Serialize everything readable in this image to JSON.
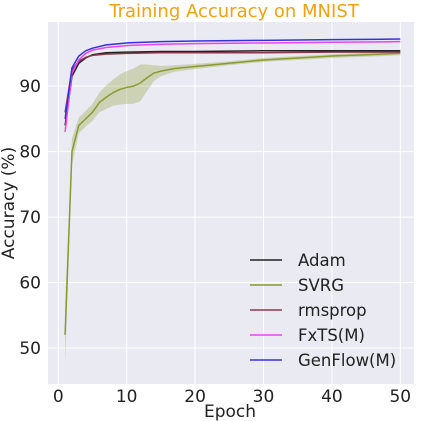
{
  "chart_data": {
    "type": "line",
    "title": "Training Accuracy on MNIST",
    "title_color": "#f5a00f",
    "xlabel": "Epoch",
    "ylabel": "Accuracy (%)",
    "xlim": [
      -1.5,
      52
    ],
    "ylim": [
      44.5,
      99.8
    ],
    "xticks": [
      0,
      10,
      20,
      30,
      40,
      50
    ],
    "yticks": [
      50,
      60,
      70,
      80,
      90
    ],
    "grid": true,
    "background": "#eaeaf2",
    "legend_position": "lower-right",
    "series": [
      {
        "name": "Adam",
        "color": "#222222",
        "x": [
          1,
          2,
          3,
          4,
          5,
          7,
          10,
          15,
          20,
          30,
          40,
          50
        ],
        "y": [
          84.0,
          91.5,
          93.5,
          94.3,
          94.8,
          95.1,
          95.2,
          95.3,
          95.3,
          95.4,
          95.4,
          95.4
        ]
      },
      {
        "name": "SVRG",
        "color": "#8a9a2e",
        "x": [
          1,
          2,
          3,
          4,
          5,
          6,
          7,
          8,
          9,
          10,
          11,
          12,
          13,
          14,
          15,
          17,
          20,
          25,
          30,
          35,
          40,
          45,
          50
        ],
        "y": [
          52.0,
          80.0,
          84.0,
          85.0,
          86.0,
          87.5,
          88.3,
          89.0,
          89.5,
          89.8,
          90.0,
          90.5,
          91.3,
          92.0,
          92.3,
          92.7,
          93.0,
          93.5,
          94.0,
          94.3,
          94.6,
          94.8,
          95.0
        ],
        "band": [
          4.5,
          2.0,
          1.2,
          1.2,
          1.3,
          1.5,
          1.8,
          2.0,
          2.3,
          2.5,
          2.7,
          2.8,
          2.0,
          1.2,
          0.8,
          0.5,
          0.4,
          0.3,
          0.3,
          0.3,
          0.3,
          0.3,
          0.3
        ]
      },
      {
        "name": "rmsprop",
        "color": "#8b3a4a",
        "x": [
          1,
          2,
          3,
          4,
          5,
          7,
          10,
          15,
          20,
          30,
          40,
          50
        ],
        "y": [
          86.0,
          92.5,
          93.8,
          94.4,
          94.7,
          94.9,
          95.0,
          95.1,
          95.1,
          95.1,
          95.2,
          95.2
        ]
      },
      {
        "name": "FxTS(M)",
        "color": "#ee44ee",
        "x": [
          1,
          2,
          3,
          4,
          5,
          7,
          10,
          15,
          20,
          30,
          40,
          50
        ],
        "y": [
          83.0,
          92.0,
          94.0,
          95.0,
          95.5,
          95.9,
          96.2,
          96.4,
          96.5,
          96.6,
          96.7,
          96.8
        ]
      },
      {
        "name": "GenFlow(M)",
        "color": "#3333dd",
        "x": [
          1,
          2,
          3,
          4,
          5,
          7,
          10,
          15,
          20,
          30,
          40,
          50
        ],
        "y": [
          85.0,
          92.8,
          94.6,
          95.4,
          95.8,
          96.3,
          96.6,
          96.8,
          96.9,
          97.0,
          97.1,
          97.2
        ]
      }
    ]
  }
}
